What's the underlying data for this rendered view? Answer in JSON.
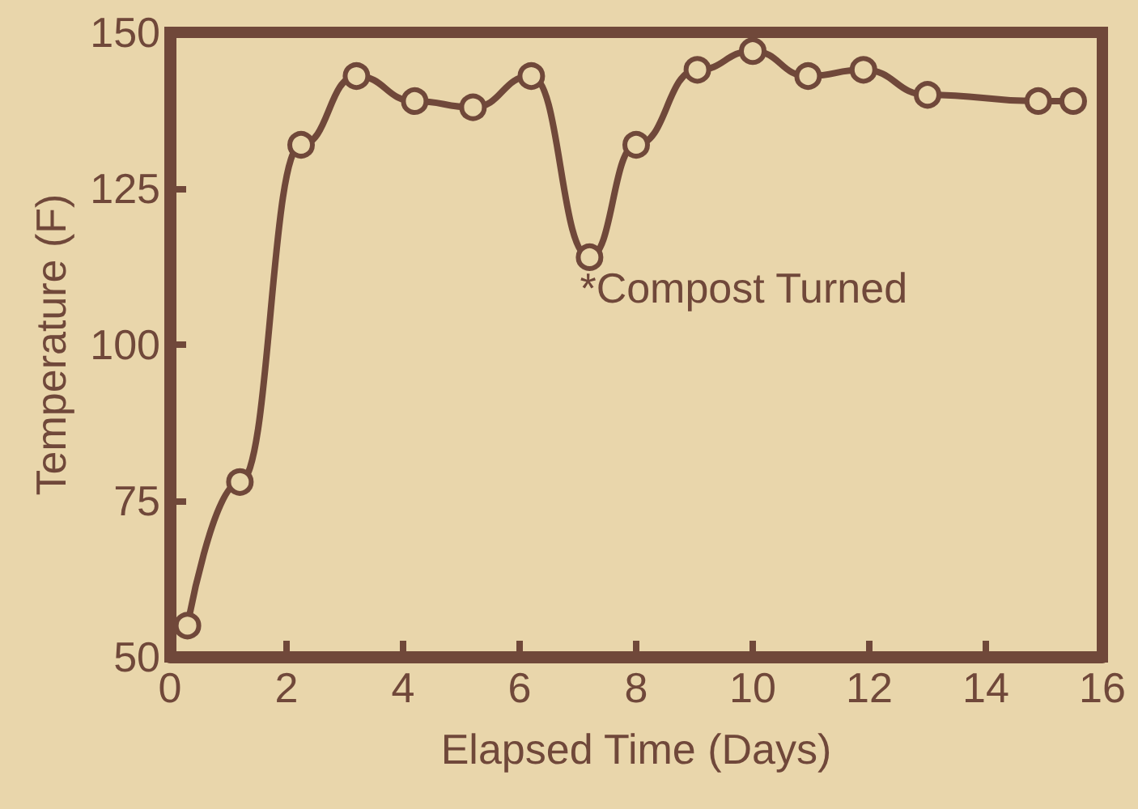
{
  "chart_data": {
    "type": "line",
    "xlabel": "Elapsed Time (Days)",
    "ylabel": "Temperature (F)",
    "x": [
      0.3,
      1.2,
      2.25,
      3.2,
      4.2,
      5.2,
      6.2,
      7.2,
      8.0,
      9.05,
      10.0,
      10.95,
      11.9,
      13.0,
      14.9,
      15.5
    ],
    "series": [
      {
        "color": "#70483a",
        "values": [
          55,
          78,
          132,
          143,
          139,
          138,
          143,
          114,
          132,
          144,
          147,
          143,
          144,
          140,
          139,
          139
        ]
      }
    ],
    "xlim": [
      0,
      16
    ],
    "xticks": [
      0,
      2,
      4,
      6,
      8,
      10,
      12,
      14,
      16
    ],
    "ylim": [
      50,
      150
    ],
    "yticks": [
      50,
      75,
      100,
      125,
      150
    ],
    "annotations": [
      {
        "text": "*Compost Turned",
        "x": 7.2,
        "y": 114
      }
    ],
    "marker": "circle",
    "line_style": "solid"
  }
}
